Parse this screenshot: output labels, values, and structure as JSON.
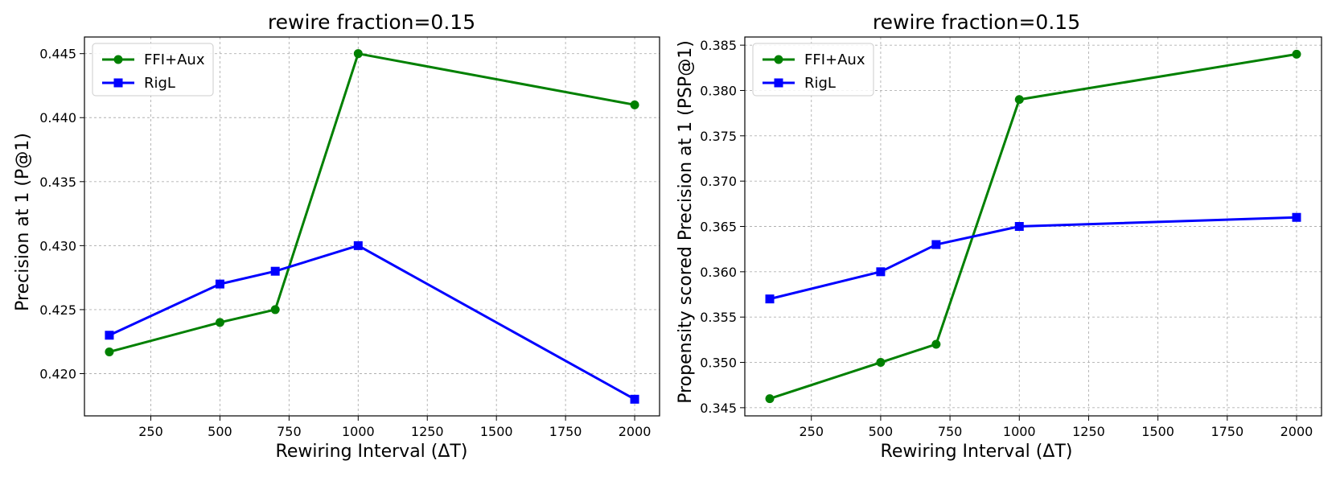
{
  "chart_data": [
    {
      "type": "line",
      "title": "rewire fraction=0.15",
      "xlabel": "Rewiring Interval (ΔT)",
      "ylabel": "Precision at 1 (P@1)",
      "x": [
        100,
        500,
        700,
        1000,
        2000
      ],
      "series": [
        {
          "name": "FFI+Aux",
          "color": "#008000",
          "marker": "circle",
          "values": [
            0.4217,
            0.424,
            0.425,
            0.445,
            0.441
          ]
        },
        {
          "name": "RigL",
          "color": "#0000ff",
          "marker": "square",
          "values": [
            0.423,
            0.427,
            0.428,
            0.43,
            0.418
          ]
        }
      ],
      "xlim": [
        10,
        2090
      ],
      "ylim": [
        0.4167,
        0.4463
      ],
      "xticks": [
        250,
        500,
        750,
        1000,
        1250,
        1500,
        1750,
        2000
      ],
      "xtick_labels": [
        "250",
        "500",
        "750",
        "1000",
        "1250",
        "1500",
        "1750",
        "2000"
      ],
      "yticks": [
        0.42,
        0.425,
        0.43,
        0.435,
        0.44,
        0.445
      ],
      "ytick_labels": [
        "0.420",
        "0.425",
        "0.430",
        "0.435",
        "0.440",
        "0.445"
      ],
      "grid": true,
      "legend_position": "upper-left"
    },
    {
      "type": "line",
      "title": "rewire fraction=0.15",
      "xlabel": "Rewiring Interval (ΔT)",
      "ylabel": "Propensity scored Precision at 1 (PSP@1)",
      "x": [
        100,
        500,
        700,
        1000,
        2000
      ],
      "series": [
        {
          "name": "FFI+Aux",
          "color": "#008000",
          "marker": "circle",
          "values": [
            0.346,
            0.35,
            0.352,
            0.379,
            0.384
          ]
        },
        {
          "name": "RigL",
          "color": "#0000ff",
          "marker": "square",
          "values": [
            0.357,
            0.36,
            0.363,
            0.365,
            0.366
          ]
        }
      ],
      "xlim": [
        10,
        2090
      ],
      "ylim": [
        0.3441,
        0.3859
      ],
      "xticks": [
        250,
        500,
        750,
        1000,
        1250,
        1500,
        1750,
        2000
      ],
      "xtick_labels": [
        "250",
        "500",
        "750",
        "1000",
        "1250",
        "1500",
        "1750",
        "2000"
      ],
      "yticks": [
        0.345,
        0.35,
        0.355,
        0.36,
        0.365,
        0.37,
        0.375,
        0.38,
        0.385
      ],
      "ytick_labels": [
        "0.345",
        "0.350",
        "0.355",
        "0.360",
        "0.365",
        "0.370",
        "0.375",
        "0.380",
        "0.385"
      ],
      "grid": true,
      "legend_position": "upper-left"
    }
  ]
}
